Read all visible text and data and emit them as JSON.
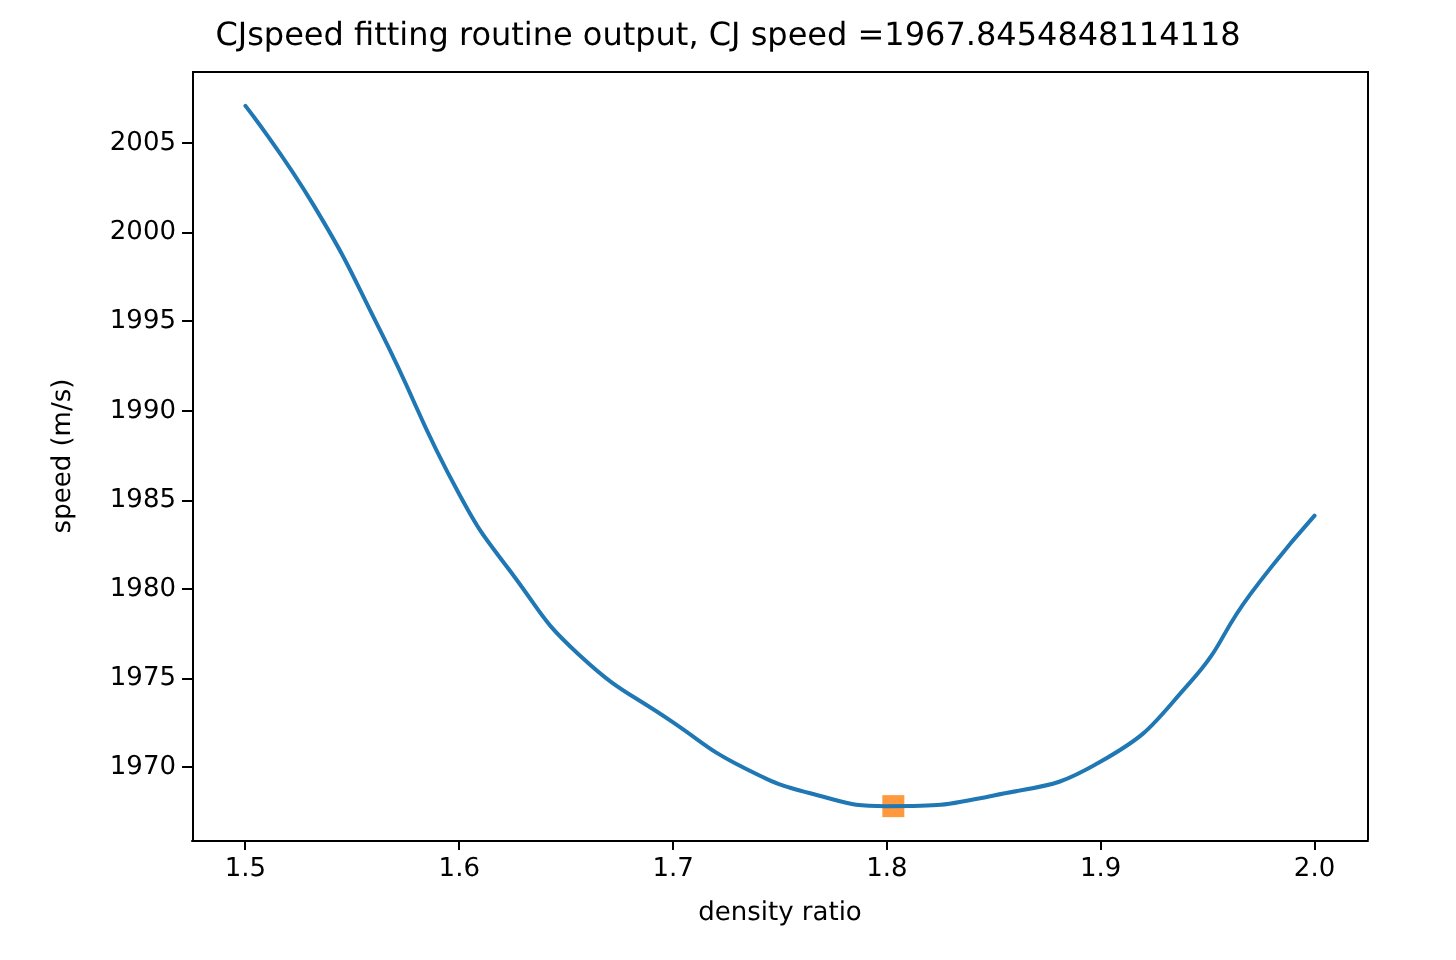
{
  "chart_data": {
    "type": "line",
    "title": "CJspeed fitting routine output, CJ speed =1967.8454848114118",
    "xlabel": "density ratio",
    "ylabel": "speed (m/s)",
    "xlim": [
      1.475,
      2.025
    ],
    "xticks": [
      1.5,
      1.6,
      1.7,
      1.8,
      1.9,
      {
        "value": 2.0,
        "label": "2.0"
      }
    ],
    "ylim": [
      1965.9,
      2009.0
    ],
    "yticks": [
      1970,
      1975,
      1980,
      1985,
      1990,
      1995,
      2000,
      2005
    ],
    "grid": false,
    "series": [
      {
        "color": "#1f77b4",
        "marker": "none",
        "line_style": "solid",
        "x": [
          1.5,
          1.532,
          1.563,
          1.6,
          1.625,
          1.656,
          1.7,
          1.734,
          1.768,
          1.8,
          1.85,
          1.9,
          1.9415,
          1.97,
          2.0
        ],
        "values": [
          2007.1,
          2001.5,
          1994.5,
          1985.3,
          1980.8,
          1976.3,
          1972.5,
          1969.9,
          1968.4,
          1967.8,
          1968.4,
          1970.3,
          1974.7,
          1979.7,
          1984.1
        ]
      },
      {
        "type": "scatter",
        "color": "#ff7f0e",
        "marker": "square",
        "x": [
          1.803
        ],
        "values": [
          1967.8
        ]
      }
    ]
  }
}
